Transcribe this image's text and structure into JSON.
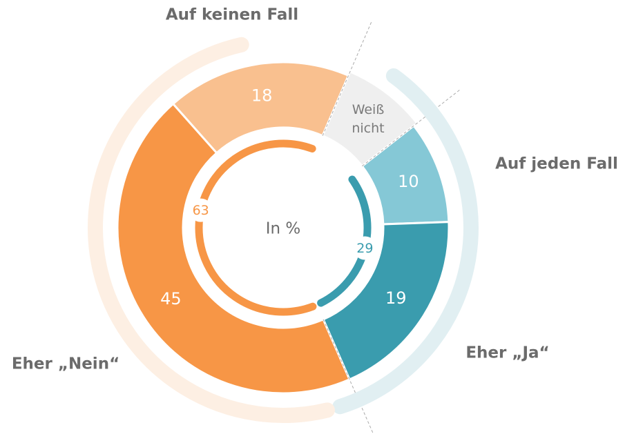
{
  "chart_data": {
    "type": "donut",
    "title": "In %",
    "categories": [
      "Auf jeden Fall",
      "Eher „Ja“",
      "Eher „Nein“",
      "Auf keinen Fall",
      "Weiß nicht"
    ],
    "values": [
      10,
      19,
      45,
      18,
      8
    ],
    "colors": [
      "#85c8d6",
      "#3a9cae",
      "#f79646",
      "#f9c08f",
      "#efefef"
    ],
    "groups": [
      {
        "value": 29,
        "color": "#3a9cae"
      },
      {
        "value": 63,
        "color": "#f79646"
      }
    ]
  }
}
